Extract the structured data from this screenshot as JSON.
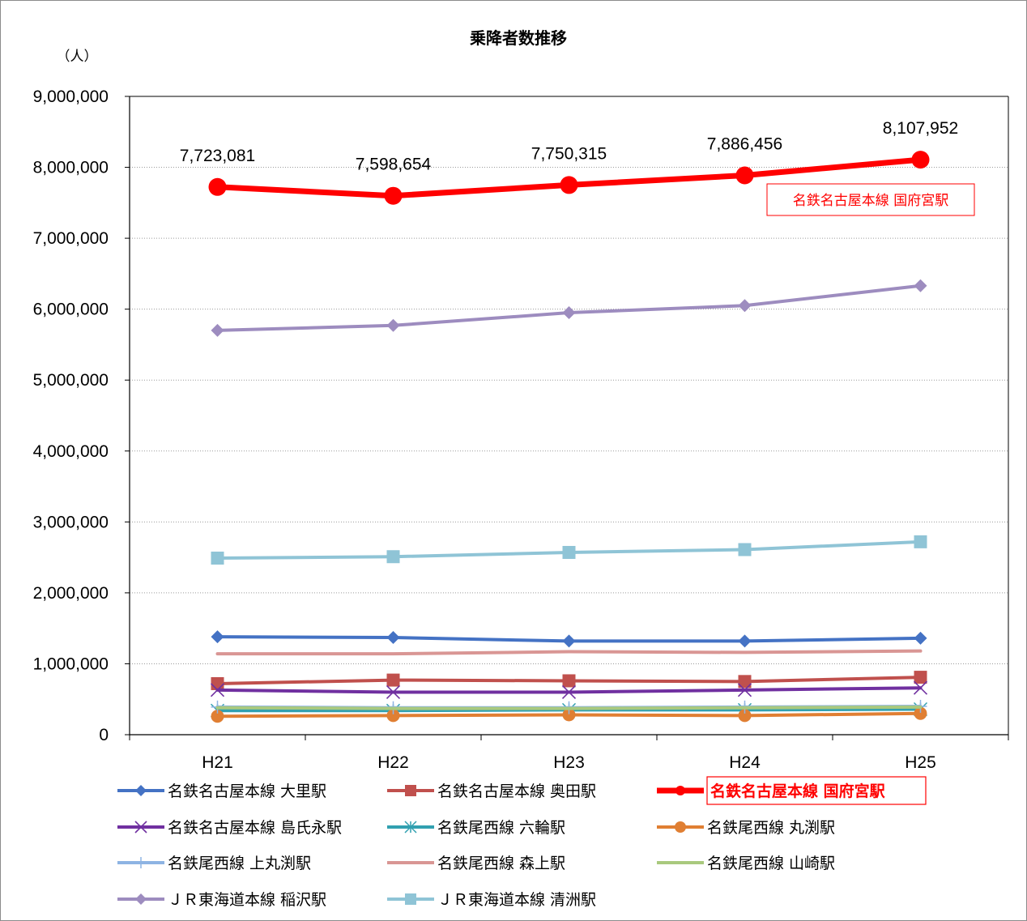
{
  "chart_data": {
    "type": "line",
    "title": "乗降者数推移",
    "ylabel": "（人）",
    "xlabel": "",
    "categories": [
      "H21",
      "H22",
      "H23",
      "H24",
      "H25"
    ],
    "ylim": [
      0,
      9000000
    ],
    "yticks": [
      0,
      1000000,
      2000000,
      3000000,
      4000000,
      5000000,
      6000000,
      7000000,
      8000000,
      9000000
    ],
    "ytick_labels": [
      "0",
      "1,000,000",
      "2,000,000",
      "3,000,000",
      "4,000,000",
      "5,000,000",
      "6,000,000",
      "7,000,000",
      "8,000,000",
      "9,000,000"
    ],
    "grid": "horizontal dotted",
    "legend_position": "bottom",
    "series": [
      {
        "name": "名鉄名古屋本線 大里駅",
        "color": "#4472c4",
        "marker": "diamond",
        "values": [
          1380000,
          1370000,
          1320000,
          1320000,
          1360000
        ]
      },
      {
        "name": "名鉄名古屋本線 奥田駅",
        "color": "#c0504d",
        "marker": "square",
        "values": [
          720000,
          770000,
          760000,
          750000,
          810000
        ]
      },
      {
        "name": "名鉄名古屋本線 国府宮駅",
        "color": "#ff0000",
        "marker": "circle",
        "highlight": true,
        "values": [
          7723081,
          7598654,
          7750315,
          7886456,
          8107952
        ],
        "data_labels": [
          "7,723,081",
          "7,598,654",
          "7,750,315",
          "7,886,456",
          "8,107,952"
        ],
        "annotation": "名鉄名古屋本線 国府宮駅"
      },
      {
        "name": "名鉄名古屋本線 島氏永駅",
        "color": "#7030a0",
        "marker": "x",
        "values": [
          630000,
          600000,
          600000,
          630000,
          660000
        ]
      },
      {
        "name": "名鉄尾西線 六輪駅",
        "color": "#31a0b0",
        "marker": "asterisk",
        "values": [
          340000,
          340000,
          350000,
          350000,
          360000
        ]
      },
      {
        "name": "名鉄尾西線 丸渕駅",
        "color": "#e07f33",
        "marker": "circle",
        "values": [
          260000,
          270000,
          280000,
          270000,
          300000
        ]
      },
      {
        "name": "名鉄尾西線 上丸渕駅",
        "color": "#8eb4e3",
        "marker": "plus",
        "values": [
          390000,
          380000,
          380000,
          390000,
          400000
        ]
      },
      {
        "name": "名鉄尾西線 森上駅",
        "color": "#d99694",
        "marker": "none",
        "values": [
          1140000,
          1140000,
          1170000,
          1160000,
          1180000
        ]
      },
      {
        "name": "名鉄尾西線 山崎駅",
        "color": "#a9c97e",
        "marker": "none",
        "values": [
          380000,
          370000,
          370000,
          380000,
          390000
        ]
      },
      {
        "name": "ＪＲ東海道本線 稲沢駅",
        "color": "#9d8cbf",
        "marker": "diamond",
        "values": [
          5700000,
          5770000,
          5950000,
          6050000,
          6330000
        ]
      },
      {
        "name": "ＪＲ東海道本線 清洲駅",
        "color": "#8fc4d6",
        "marker": "square",
        "values": [
          2490000,
          2510000,
          2570000,
          2610000,
          2720000
        ]
      }
    ]
  }
}
